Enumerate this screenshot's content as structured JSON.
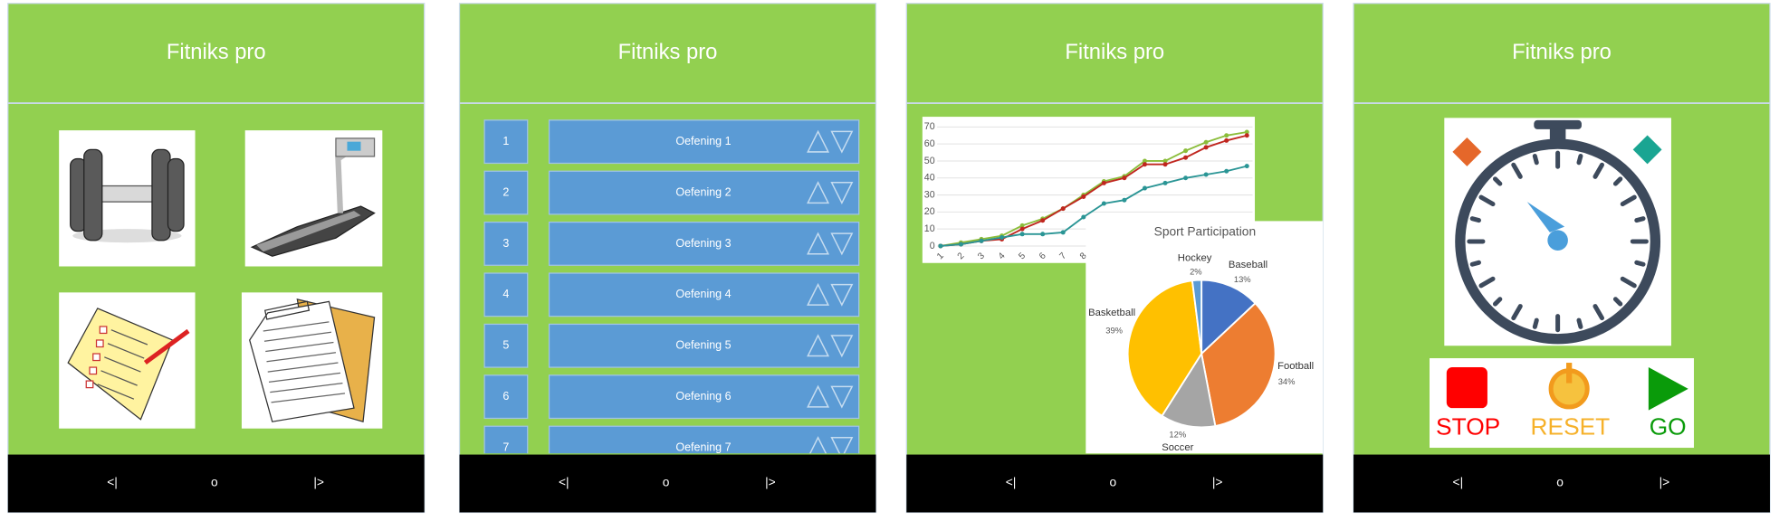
{
  "screens": [
    {
      "title": "Fitniks pro",
      "nav": [
        "<|",
        "o",
        "|>"
      ]
    },
    {
      "title": "Fitniks pro",
      "nav": [
        "<|",
        "o",
        "|>"
      ],
      "rows": [
        {
          "number": 1,
          "label": "Oefening 1"
        },
        {
          "number": 2,
          "label": "Oefening 2"
        },
        {
          "number": 3,
          "label": "Oefening 3"
        },
        {
          "number": 4,
          "label": "Oefening 4"
        },
        {
          "number": 5,
          "label": "Oefening 5"
        },
        {
          "number": 6,
          "label": "Oefening 6"
        },
        {
          "number": 7,
          "label": "Oefening 7"
        }
      ]
    },
    {
      "title": "Fitniks pro",
      "nav": [
        "<|",
        "o",
        "|>"
      ],
      "line_chart": {
        "type": "line",
        "categories": [
          "1",
          "2",
          "3",
          "4",
          "5",
          "6",
          "7",
          "8",
          null,
          null,
          null,
          null,
          null,
          null,
          null,
          null
        ],
        "ylim": [
          0,
          70
        ],
        "yticks": [
          0,
          10,
          20,
          30,
          40,
          50,
          60,
          70
        ],
        "grid": true,
        "series": [
          {
            "color": "#8bbd3a",
            "values": [
              0,
              2,
              4,
              6,
              12,
              16,
              22,
              30,
              38,
              41,
              50,
              50,
              56,
              61,
              65,
              67
            ]
          },
          {
            "color": "#c0261f",
            "values": [
              0,
              1,
              3,
              4,
              10,
              15,
              22,
              29,
              37,
              40,
              48,
              48,
              52,
              58,
              62,
              65
            ]
          },
          {
            "color": "#2a9595",
            "values": [
              0,
              1,
              3,
              5,
              7,
              7,
              8,
              17,
              25,
              27,
              34,
              37,
              40,
              42,
              44,
              47
            ]
          }
        ]
      },
      "pie_chart": {
        "type": "pie",
        "title": "Sport Participation",
        "categories": [
          "Baseball",
          "Football",
          "Soccer",
          "Basketball",
          "Hockey"
        ],
        "values": [
          13,
          34,
          12,
          39,
          2
        ],
        "value_labels": [
          "13%",
          "34%",
          "12%",
          "39%",
          "2%"
        ],
        "colors": [
          "#4472c4",
          "#ed7d31",
          "#a5a5a5",
          "#ffc000",
          "#5b9bd5"
        ]
      }
    },
    {
      "title": "Fitniks pro",
      "nav": [
        "<|",
        "o",
        "|>"
      ],
      "buttons": [
        "STOP",
        "RESET",
        "GO"
      ]
    }
  ]
}
